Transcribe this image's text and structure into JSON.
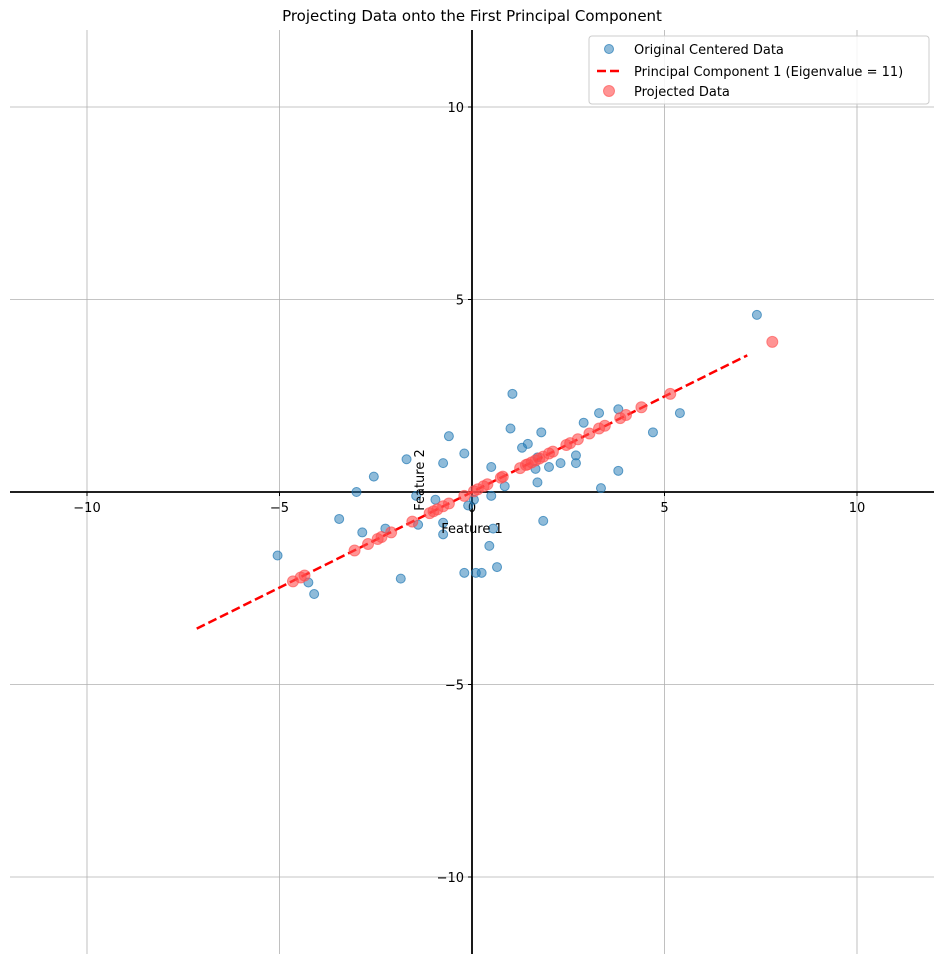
{
  "chart_data": {
    "type": "scatter",
    "title": "Projecting Data onto the First Principal Component",
    "xlabel": "Feature 1",
    "ylabel": "Feature 2",
    "xlim": [
      -12,
      12
    ],
    "ylim": [
      -12,
      12
    ],
    "xticks": [
      -10,
      -5,
      0,
      5,
      10
    ],
    "yticks": [
      -10,
      -5,
      0,
      5,
      10
    ],
    "grid": true,
    "legend_position": "top-right",
    "legend": [
      "Original Centered Data",
      "Principal Component 1 (Eigenvalue = 11)",
      "Projected Data"
    ],
    "colors": {
      "original": "#1f77b4",
      "pc_line": "#ff0000",
      "projected": "#ff4d4d"
    },
    "series": [
      {
        "name": "Original Centered Data",
        "kind": "scatter",
        "points": [
          [
            7.4,
            4.6
          ],
          [
            5.4,
            2.05
          ],
          [
            4.7,
            1.55
          ],
          [
            3.8,
            2.15
          ],
          [
            3.8,
            0.55
          ],
          [
            3.3,
            2.05
          ],
          [
            3.35,
            0.1
          ],
          [
            2.9,
            1.8
          ],
          [
            2.7,
            0.95
          ],
          [
            2.7,
            0.75
          ],
          [
            2.3,
            0.75
          ],
          [
            2.0,
            0.65
          ],
          [
            1.8,
            1.55
          ],
          [
            1.85,
            -0.75
          ],
          [
            1.7,
            0.9
          ],
          [
            1.65,
            0.6
          ],
          [
            1.7,
            0.25
          ],
          [
            1.45,
            1.25
          ],
          [
            1.3,
            1.15
          ],
          [
            1.0,
            1.65
          ],
          [
            1.05,
            2.55
          ],
          [
            0.85,
            0.15
          ],
          [
            0.5,
            0.65
          ],
          [
            0.5,
            -0.1
          ],
          [
            0.45,
            -1.4
          ],
          [
            0.55,
            -0.95
          ],
          [
            0.65,
            -1.95
          ],
          [
            0.25,
            -2.1
          ],
          [
            0.1,
            -2.1
          ],
          [
            0.05,
            -0.2
          ],
          [
            -0.2,
            1.0
          ],
          [
            -0.2,
            -2.1
          ],
          [
            -0.1,
            -0.35
          ],
          [
            -0.75,
            0.75
          ],
          [
            -0.6,
            1.45
          ],
          [
            -0.95,
            -0.2
          ],
          [
            -0.75,
            -0.8
          ],
          [
            -0.75,
            -1.1
          ],
          [
            -1.4,
            -0.85
          ],
          [
            -1.45,
            -0.1
          ],
          [
            -1.7,
            0.85
          ],
          [
            -1.85,
            -2.25
          ],
          [
            -2.25,
            -0.95
          ],
          [
            -2.55,
            0.4
          ],
          [
            -2.85,
            -1.05
          ],
          [
            -3.0,
            0.0
          ],
          [
            -3.45,
            -0.7
          ],
          [
            -4.1,
            -2.65
          ],
          [
            -4.25,
            -2.35
          ],
          [
            -5.05,
            -1.65
          ]
        ]
      },
      {
        "name": "Principal Component 1 (Eigenvalue = 11)",
        "kind": "line",
        "points": [
          [
            -7.15,
            -3.55
          ],
          [
            7.15,
            3.55
          ]
        ]
      },
      {
        "name": "Projected Data",
        "kind": "scatter",
        "points": [
          [
            7.8,
            3.9
          ],
          [
            5.15,
            2.55
          ],
          [
            4.4,
            2.2
          ],
          [
            4.0,
            2.0
          ],
          [
            3.85,
            1.92
          ],
          [
            3.45,
            1.72
          ],
          [
            3.3,
            1.65
          ],
          [
            3.05,
            1.52
          ],
          [
            2.75,
            1.37
          ],
          [
            2.55,
            1.27
          ],
          [
            2.45,
            1.22
          ],
          [
            2.1,
            1.05
          ],
          [
            2.0,
            1.0
          ],
          [
            1.85,
            0.92
          ],
          [
            1.75,
            0.87
          ],
          [
            1.65,
            0.82
          ],
          [
            1.55,
            0.77
          ],
          [
            1.45,
            0.72
          ],
          [
            1.4,
            0.7
          ],
          [
            1.25,
            0.62
          ],
          [
            0.8,
            0.4
          ],
          [
            0.75,
            0.37
          ],
          [
            0.4,
            0.2
          ],
          [
            0.3,
            0.15
          ],
          [
            0.15,
            0.07
          ],
          [
            0.05,
            0.02
          ],
          [
            -0.2,
            -0.1
          ],
          [
            -0.6,
            -0.3
          ],
          [
            -0.75,
            -0.37
          ],
          [
            -0.9,
            -0.45
          ],
          [
            -1.0,
            -0.5
          ],
          [
            -1.1,
            -0.55
          ],
          [
            -1.55,
            -0.77
          ],
          [
            -2.1,
            -1.05
          ],
          [
            -2.35,
            -1.17
          ],
          [
            -2.45,
            -1.22
          ],
          [
            -2.7,
            -1.35
          ],
          [
            -3.05,
            -1.52
          ],
          [
            -4.35,
            -2.17
          ],
          [
            -4.45,
            -2.22
          ],
          [
            -4.65,
            -2.32
          ]
        ]
      }
    ]
  }
}
